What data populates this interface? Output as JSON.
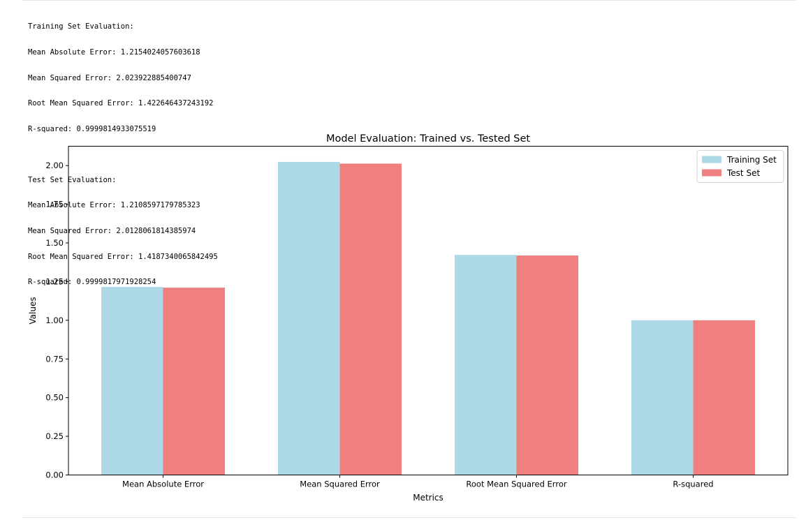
{
  "output": {
    "train_block": [
      "Training Set Evaluation:",
      "Mean Absolute Error: 1.2154024057603618",
      "Mean Squared Error: 2.023922885400747",
      "Root Mean Squared Error: 1.422646437243192",
      "R-squared: 0.9999814933075519"
    ],
    "test_block": [
      "Test Set Evaluation:",
      "Mean Absolute Error: 1.2108597179785323",
      "Mean Squared Error: 2.0128061814385974",
      "Root Mean Squared Error: 1.4187340065842495",
      "R-squared: 0.9999817971928254"
    ]
  },
  "chart_data": {
    "type": "bar",
    "title": "Model Evaluation: Trained vs. Tested Set",
    "xlabel": "Metrics",
    "ylabel": "Values",
    "categories": [
      "Mean Absolute Error",
      "Mean Squared Error",
      "Root Mean Squared Error",
      "R-squared"
    ],
    "series": [
      {
        "name": "Training Set",
        "color": "#add8e6",
        "values": [
          1.2154024057603618,
          2.023922885400747,
          1.422646437243192,
          0.9999814933075519
        ]
      },
      {
        "name": "Test Set",
        "color": "#f08080",
        "values": [
          1.2108597179785323,
          2.0128061814385974,
          1.4187340065842495,
          0.9999817971928254
        ]
      }
    ],
    "ylim": [
      0,
      2.125
    ],
    "yticks": [
      "0.00",
      "0.25",
      "0.50",
      "0.75",
      "1.00",
      "1.25",
      "1.50",
      "1.75",
      "2.00"
    ],
    "legend_position": "upper right",
    "grid": false
  }
}
